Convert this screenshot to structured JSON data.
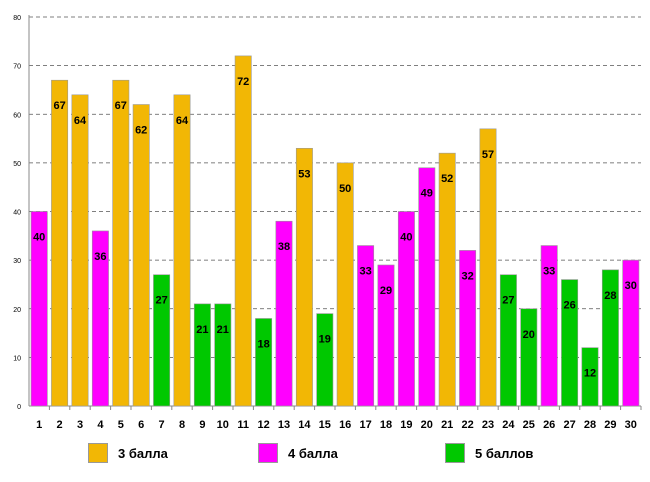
{
  "chart_data": {
    "type": "bar",
    "ylim": [
      0,
      80
    ],
    "yticks": [
      "0",
      "10",
      "20",
      "30",
      "40",
      "50",
      "60",
      "70",
      "80"
    ],
    "grid": true,
    "categories": [
      "1",
      "2",
      "3",
      "4",
      "5",
      "6",
      "7",
      "8",
      "9",
      "10",
      "11",
      "12",
      "13",
      "14",
      "15",
      "16",
      "17",
      "18",
      "19",
      "20",
      "21",
      "22",
      "23",
      "24",
      "25",
      "26",
      "27",
      "28",
      "29",
      "30"
    ],
    "values": [
      40,
      67,
      64,
      36,
      67,
      62,
      27,
      64,
      21,
      21,
      72,
      18,
      38,
      53,
      19,
      50,
      33,
      29,
      40,
      49,
      52,
      32,
      57,
      27,
      20,
      33,
      26,
      12,
      28,
      30
    ],
    "groups": [
      "4 балла",
      "3 балла",
      "3 балла",
      "4 балла",
      "3 балла",
      "3 балла",
      "5 баллов",
      "3 балла",
      "5 баллов",
      "5 баллов",
      "3 балла",
      "5 баллов",
      "4 балла",
      "3 балла",
      "5 баллов",
      "3 балла",
      "4 балла",
      "4 балла",
      "4 балла",
      "4 балла",
      "3 балла",
      "4 балла",
      "3 балла",
      "5 баллов",
      "5 баллов",
      "4 балла",
      "5 баллов",
      "5 баллов",
      "5 баллов",
      "4 балла"
    ],
    "legend": [
      {
        "name": "3 балла",
        "color": "#F2B705"
      },
      {
        "name": "4 балла",
        "color": "#FF00FF"
      },
      {
        "name": "5 баллов",
        "color": "#00C800"
      }
    ]
  }
}
